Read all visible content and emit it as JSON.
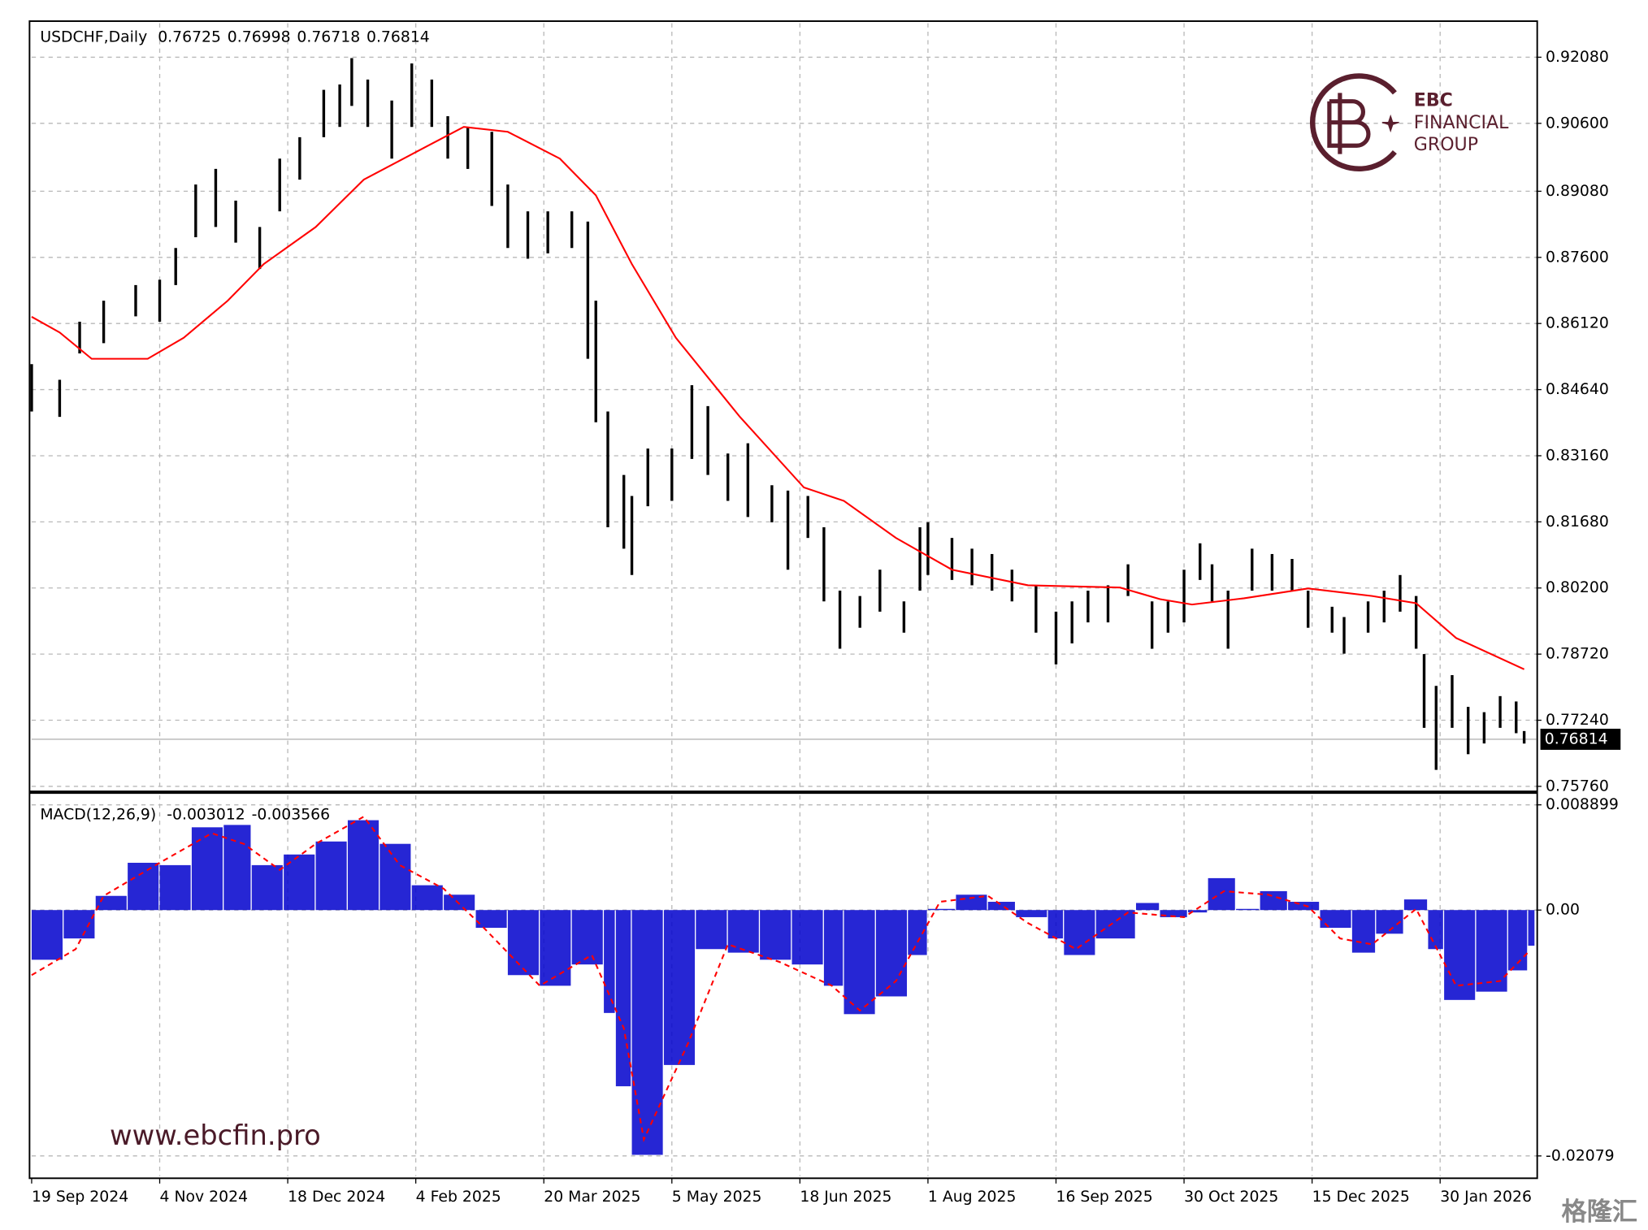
{
  "chart_data": [
    {
      "type": "ohlc",
      "title": "USDCHF,Daily",
      "title_values": [
        0.76725,
        0.76998,
        0.76718,
        0.76814
      ],
      "color": "#000000",
      "x": [
        0,
        7,
        12,
        18,
        26,
        32,
        36,
        41,
        46,
        51,
        57,
        62,
        67,
        73,
        77,
        80,
        84,
        90,
        95,
        100,
        104,
        109,
        115,
        119,
        124,
        129,
        135,
        139,
        141,
        144,
        148,
        150,
        154,
        160,
        165,
        169,
        174,
        179,
        185,
        189,
        194,
        198,
        202,
        207,
        212,
        218,
        222,
        224,
        230,
        235,
        240,
        245,
        251,
        256,
        260,
        264,
        269,
        274,
        280,
        284,
        288,
        292,
        295,
        299,
        305,
        310,
        315,
        319,
        325,
        328,
        334,
        338,
        342,
        346,
        348,
        351,
        355,
        359,
        363,
        367,
        371,
        373
      ],
      "high": [
        0.8521,
        0.8486,
        0.8616,
        0.8663,
        0.8698,
        0.871,
        0.8781,
        0.8923,
        0.8958,
        0.8887,
        0.8828,
        0.8981,
        0.9029,
        0.9135,
        0.9147,
        0.9206,
        0.9158,
        0.9111,
        0.9194,
        0.9158,
        0.9076,
        0.9052,
        0.9041,
        0.8923,
        0.8863,
        0.8863,
        0.8863,
        0.884,
        0.8663,
        0.8415,
        0.8273,
        0.8226,
        0.8332,
        0.8332,
        0.8474,
        0.8427,
        0.8321,
        0.8344,
        0.825,
        0.8238,
        0.8226,
        0.8156,
        0.8014,
        0.8002,
        0.8061,
        0.799,
        0.8156,
        0.8167,
        0.8132,
        0.8108,
        0.8096,
        0.8061,
        0.8026,
        0.7967,
        0.799,
        0.8014,
        0.8026,
        0.8073,
        0.799,
        0.799,
        0.8061,
        0.812,
        0.8073,
        0.8014,
        0.8108,
        0.8096,
        0.8085,
        0.8014,
        0.7978,
        0.7955,
        0.799,
        0.8014,
        0.8049,
        0.8002,
        0.7872,
        0.7801,
        0.7825,
        0.7754,
        0.7742,
        0.7778,
        0.7766,
        0.76998
      ],
      "low": [
        0.8415,
        0.8403,
        0.8545,
        0.8568,
        0.8628,
        0.8616,
        0.8698,
        0.8805,
        0.8828,
        0.8793,
        0.8734,
        0.8863,
        0.8934,
        0.9029,
        0.9052,
        0.9099,
        0.9052,
        0.8981,
        0.9052,
        0.9052,
        0.8981,
        0.8958,
        0.8875,
        0.8781,
        0.8757,
        0.8769,
        0.8781,
        0.8533,
        0.8391,
        0.8156,
        0.8108,
        0.8049,
        0.8203,
        0.8215,
        0.8309,
        0.8273,
        0.8215,
        0.8179,
        0.8167,
        0.8061,
        0.8132,
        0.799,
        0.7884,
        0.7931,
        0.7967,
        0.792,
        0.8014,
        0.8049,
        0.8038,
        0.8026,
        0.8014,
        0.799,
        0.792,
        0.7849,
        0.7896,
        0.7943,
        0.7943,
        0.8002,
        0.7884,
        0.792,
        0.7943,
        0.8038,
        0.799,
        0.7884,
        0.8014,
        0.8014,
        0.8014,
        0.7931,
        0.792,
        0.7873,
        0.792,
        0.7943,
        0.7967,
        0.7884,
        0.7707,
        0.7613,
        0.7707,
        0.7648,
        0.7672,
        0.7707,
        0.7695,
        0.76718
      ],
      "ma": {
        "color": "#ff0000",
        "x": [
          0,
          7,
          15,
          29,
          38,
          49,
          58,
          71,
          83,
          98,
          108,
          119,
          132,
          141,
          150,
          161,
          177,
          193,
          203,
          216,
          230,
          249,
          272,
          282,
          290,
          303,
          319,
          335,
          346,
          356,
          373
        ],
        "values": [
          0.8627,
          0.8592,
          0.8533,
          0.8533,
          0.858,
          0.8663,
          0.8745,
          0.8828,
          0.8934,
          0.9005,
          0.9052,
          0.9041,
          0.8981,
          0.8899,
          0.8745,
          0.858,
          0.8403,
          0.8245,
          0.8215,
          0.8132,
          0.8061,
          0.8026,
          0.8021,
          0.7995,
          0.7983,
          0.7997,
          0.8019,
          0.8002,
          0.7986,
          0.7908,
          0.7838
        ]
      },
      "last_price": 0.76814,
      "xlim": [
        0,
        376
      ],
      "ylim": [
        0.757,
        0.9284
      ],
      "yticks": [
        {
          "value": 0.9208,
          "label": "0.92080"
        },
        {
          "value": 0.906,
          "label": "0.90600"
        },
        {
          "value": 0.8908,
          "label": "0.89080"
        },
        {
          "value": 0.876,
          "label": "0.87600"
        },
        {
          "value": 0.8612,
          "label": "0.86120"
        },
        {
          "value": 0.8464,
          "label": "0.84640"
        },
        {
          "value": 0.8316,
          "label": "0.83160"
        },
        {
          "value": 0.8168,
          "label": "0.81680"
        },
        {
          "value": 0.802,
          "label": "0.80200"
        },
        {
          "value": 0.7872,
          "label": "0.78720"
        },
        {
          "value": 0.7724,
          "label": "0.77240"
        },
        {
          "value": 0.7576,
          "label": "0.75760"
        }
      ],
      "grid": true
    },
    {
      "type": "macd",
      "title": "MACD(12,26,9)",
      "title_values": [
        -0.003012,
        -0.003566
      ],
      "histogram": {
        "color": "#0000cc",
        "x": [
          0,
          8,
          16,
          24,
          32,
          40,
          48,
          55,
          63,
          71,
          79,
          87,
          95,
          103,
          111,
          119,
          127,
          135,
          143,
          146,
          150,
          158,
          166,
          174,
          182,
          190,
          198,
          203,
          211,
          219,
          224,
          231,
          239,
          246,
          254,
          258,
          266,
          276,
          282,
          289,
          294,
          301,
          307,
          314,
          322,
          330,
          336,
          343,
          349,
          353,
          361,
          369,
          374
        ],
        "values": [
          -0.0042,
          -0.0024,
          0.0012,
          0.004,
          0.0038,
          0.007,
          0.0072,
          0.0038,
          0.0047,
          0.0058,
          0.0076,
          0.0056,
          0.0021,
          0.0013,
          -0.0015,
          -0.0055,
          -0.0064,
          -0.0046,
          -0.0087,
          -0.0149,
          -0.0207,
          -0.0131,
          -0.0033,
          -0.0036,
          -0.0042,
          -0.0046,
          -0.0064,
          -0.0088,
          -0.0073,
          -0.0038,
          0.0001,
          0.0013,
          0.0007,
          -0.0006,
          -0.0024,
          -0.0038,
          -0.0024,
          0.0006,
          -0.0006,
          -0.0002,
          0.0027,
          0.0001,
          0.0016,
          0.0007,
          -0.0015,
          -0.0036,
          -0.002,
          0.0009,
          -0.0033,
          -0.0076,
          -0.0069,
          -0.0051,
          -0.003012
        ]
      },
      "signal": {
        "color": "#ff0000",
        "x": [
          0,
          11,
          18,
          32,
          45,
          53,
          62,
          71,
          83,
          92,
          103,
          113,
          127,
          140,
          148,
          153,
          164,
          174,
          187,
          200,
          207,
          216,
          227,
          239,
          249,
          261,
          274,
          288,
          298,
          309,
          319,
          327,
          335,
          346,
          356,
          367,
          374
        ],
        "values": [
          -0.0055,
          -0.0033,
          0.0012,
          0.004,
          0.0065,
          0.0056,
          0.0034,
          0.0056,
          0.0079,
          0.0038,
          0.0018,
          -0.0015,
          -0.0064,
          -0.0038,
          -0.01,
          -0.0194,
          -0.0113,
          -0.0029,
          -0.0044,
          -0.0064,
          -0.0085,
          -0.006,
          0.0007,
          0.0012,
          -0.0011,
          -0.0033,
          -0.0002,
          -0.0006,
          0.0016,
          0.0013,
          0.0003,
          -0.0024,
          -0.0029,
          0.0001,
          -0.0064,
          -0.006,
          -0.003566
        ]
      },
      "xlim": [
        0,
        376
      ],
      "ylim": [
        -0.0225,
        0.0097
      ],
      "yticks": [
        0.008899,
        {
          "value": 0,
          "label": "0.00"
        },
        -0.02079
      ],
      "xticks": [
        {
          "value": 0,
          "label": "19 Sep 2024"
        },
        {
          "value": 32,
          "label": "4 Nov 2024"
        },
        {
          "value": 64,
          "label": "18 Dec 2024"
        },
        {
          "value": 96,
          "label": "4 Feb 2025"
        },
        {
          "value": 128,
          "label": "20 Mar 2025"
        },
        {
          "value": 160,
          "label": "5 May 2025"
        },
        {
          "value": 192,
          "label": "18 Jun 2025"
        },
        {
          "value": 224,
          "label": "1 Aug 2025"
        },
        {
          "value": 256,
          "label": "16 Sep 2025"
        },
        {
          "value": 288,
          "label": "30 Oct 2025"
        },
        {
          "value": 320,
          "label": "15 Dec 2025"
        },
        {
          "value": 352,
          "label": "30 Jan 2026"
        }
      ],
      "grid": true
    }
  ],
  "branding": {
    "logo_lines": [
      "EBC",
      "FINANCIAL",
      "GROUP"
    ],
    "website": "www.ebcfin.pro",
    "watermark": "格隆汇"
  }
}
